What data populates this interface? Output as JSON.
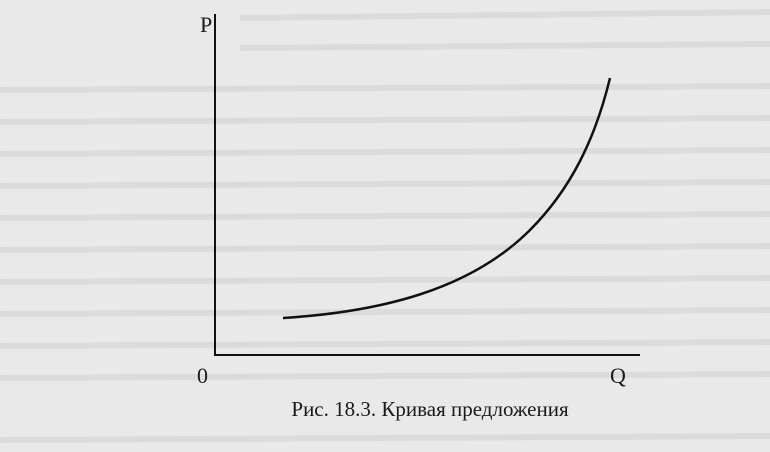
{
  "axes": {
    "y_label": "P",
    "x_label": "Q",
    "origin": "0"
  },
  "caption": "Рис. 18.3. Кривая предложения"
}
